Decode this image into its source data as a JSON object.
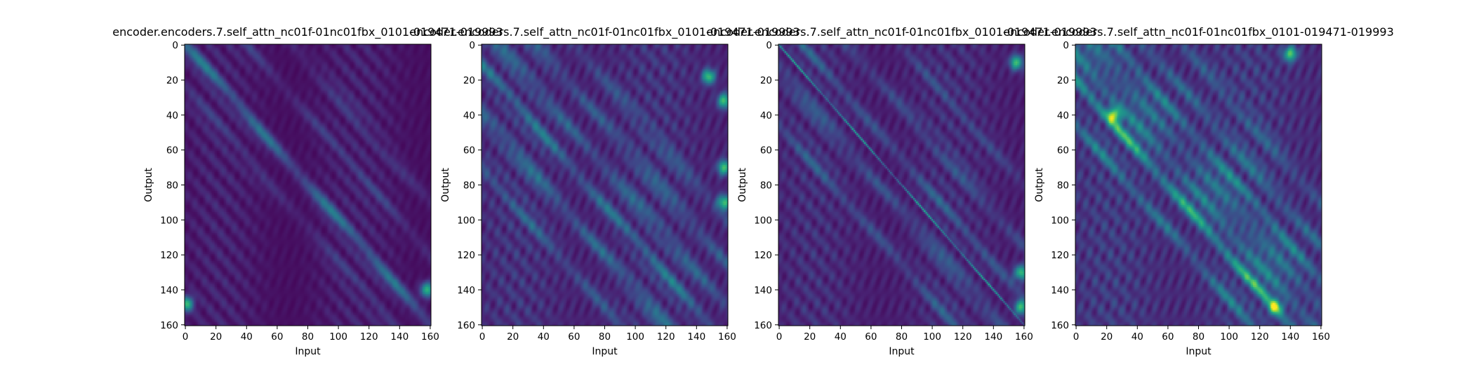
{
  "chart_data": [
    {
      "type": "heatmap",
      "title": "encoder.encoders.7.self_attn_nc01f-01nc01fbx_0101-019471-019993",
      "xlabel": "Input",
      "ylabel": "Output",
      "xticks": [
        "0",
        "20",
        "40",
        "60",
        "80",
        "100",
        "120",
        "140",
        "160"
      ],
      "yticks": [
        "0",
        "20",
        "40",
        "60",
        "80",
        "100",
        "120",
        "140",
        "160"
      ],
      "xlim": [
        0,
        161
      ],
      "ylim": [
        161,
        0
      ],
      "colormap": "viridis",
      "pattern": {
        "bands": [
          0,
          40,
          -25,
          70
        ],
        "strength": [
          0.35,
          0.12,
          0.1,
          0.1
        ],
        "base": 0.05,
        "hotspots": [
          [
            158,
            140
          ],
          [
            1,
            148
          ]
        ]
      }
    },
    {
      "type": "heatmap",
      "title": "encoder.encoders.7.self_attn_nc01f-01nc01fbx_0101-019471-019993",
      "xlabel": "Input",
      "ylabel": "Output",
      "xticks": [
        "0",
        "20",
        "40",
        "60",
        "80",
        "100",
        "120",
        "140",
        "160"
      ],
      "yticks": [
        "0",
        "20",
        "40",
        "60",
        "80",
        "100",
        "120",
        "140",
        "160"
      ],
      "xlim": [
        0,
        161
      ],
      "ylim": [
        161,
        0
      ],
      "colormap": "viridis",
      "pattern": {
        "bands": [
          -12,
          10,
          35,
          -40,
          60,
          -70
        ],
        "strength": [
          0.3,
          0.25,
          0.22,
          0.28,
          0.18,
          0.2
        ],
        "base": 0.12,
        "hotspots": [
          [
            158,
            32
          ],
          [
            158,
            70
          ],
          [
            158,
            90
          ],
          [
            148,
            18
          ]
        ]
      }
    },
    {
      "type": "heatmap",
      "title": "encoder.encoders.7.self_attn_nc01f-01nc01fbx_0101-019471-019993",
      "xlabel": "Input",
      "ylabel": "Output",
      "xticks": [
        "0",
        "20",
        "40",
        "60",
        "80",
        "100",
        "120",
        "140",
        "160"
      ],
      "yticks": [
        "0",
        "20",
        "40",
        "60",
        "80",
        "100",
        "120",
        "140",
        "160"
      ],
      "xlim": [
        0,
        161
      ],
      "ylim": [
        161,
        0
      ],
      "colormap": "viridis",
      "pattern": {
        "bands": [
          0,
          15,
          -15,
          45,
          -45,
          80
        ],
        "strength": [
          0.45,
          0.18,
          0.2,
          0.16,
          0.18,
          0.12
        ],
        "base": 0.1,
        "hotspots": [
          [
            158,
            130
          ],
          [
            158,
            150
          ],
          [
            155,
            10
          ]
        ]
      }
    },
    {
      "type": "heatmap",
      "title": "encoder.encoders.7.self_attn_nc01f-01nc01fbx_0101-019471-019993",
      "xlabel": "Input",
      "ylabel": "Output",
      "xticks": [
        "0",
        "20",
        "40",
        "60",
        "80",
        "100",
        "120",
        "140",
        "160"
      ],
      "yticks": [
        "0",
        "20",
        "40",
        "60",
        "80",
        "100",
        "120",
        "140",
        "160"
      ],
      "xlim": [
        0,
        161
      ],
      "ylim": [
        161,
        0
      ],
      "colormap": "viridis",
      "pattern": {
        "bands": [
          -20,
          -5,
          10,
          25,
          45,
          -45,
          70
        ],
        "strength": [
          0.55,
          0.35,
          0.3,
          0.35,
          0.25,
          0.28,
          0.18
        ],
        "base": 0.15,
        "hotspots": [
          [
            130,
            150
          ],
          [
            140,
            5
          ],
          [
            25,
            40
          ]
        ]
      }
    }
  ]
}
